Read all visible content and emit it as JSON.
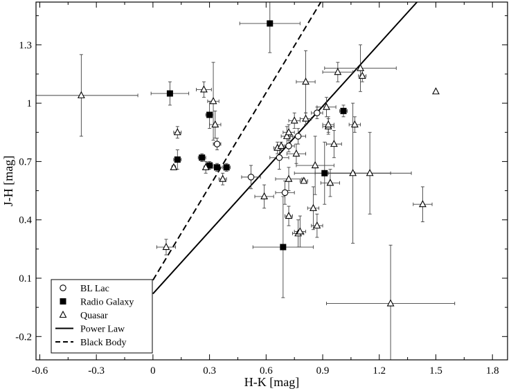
{
  "chart_data": {
    "type": "scatter",
    "xlabel": "H-K [mag]",
    "ylabel": "J-H [mag]",
    "xlim": [
      -0.62,
      1.88
    ],
    "ylim": [
      -0.32,
      1.52
    ],
    "xticks": [
      -0.6,
      -0.3,
      0,
      0.3,
      0.6,
      0.9,
      1.2,
      1.5,
      1.8
    ],
    "xtick_labels": [
      "-0.6",
      "-0.3",
      "0",
      "0.3",
      "0.6",
      "0.9",
      "1.2",
      "1.5",
      "1.8"
    ],
    "yticks": [
      -0.2,
      0.1,
      0.4,
      0.7,
      1.0,
      1.3
    ],
    "ytick_labels": [
      "-0.2",
      "0.1",
      "0.4",
      "0.7",
      "1",
      "1.3"
    ],
    "grid": false,
    "legend_position": "bottom-left",
    "series": [
      {
        "name": "BL Lac",
        "marker": "open-circle",
        "points": [
          {
            "x": 0.34,
            "y": 0.79,
            "xerr": 0.02,
            "yerr": 0.03
          },
          {
            "x": 0.52,
            "y": 0.62,
            "xerr": 0.05,
            "yerr": 0.06
          },
          {
            "x": 0.67,
            "y": 0.72,
            "xerr": 0.05,
            "yerr": 0.06
          },
          {
            "x": 0.7,
            "y": 0.54,
            "xerr": 0.05,
            "yerr": 0.06
          },
          {
            "x": 0.72,
            "y": 0.78,
            "xerr": 0.03,
            "yerr": 0.03
          },
          {
            "x": 0.77,
            "y": 0.83,
            "xerr": 0.04,
            "yerr": 0.04
          },
          {
            "x": 0.87,
            "y": 0.95,
            "xerr": 0.03,
            "yerr": 0.03
          }
        ]
      },
      {
        "name": "Radio Galaxy",
        "marker": "filled-square",
        "points": [
          {
            "x": 0.09,
            "y": 1.05,
            "xerr": 0.1,
            "yerr": 0.06
          },
          {
            "x": 0.13,
            "y": 0.71,
            "xerr": 0.02,
            "yerr": 0.05
          },
          {
            "x": 0.26,
            "y": 0.72,
            "xerr": 0.02,
            "yerr": 0.02
          },
          {
            "x": 0.3,
            "y": 0.94,
            "xerr": 0.02,
            "yerr": 0.07
          },
          {
            "x": 0.3,
            "y": 0.68,
            "xerr": 0.02,
            "yerr": 0.02
          },
          {
            "x": 0.34,
            "y": 0.67,
            "xerr": 0.02,
            "yerr": 0.02
          },
          {
            "x": 0.39,
            "y": 0.67,
            "xerr": 0.02,
            "yerr": 0.02
          },
          {
            "x": 0.62,
            "y": 1.41,
            "xerr": 0.16,
            "yerr": 0.15
          },
          {
            "x": 0.69,
            "y": 0.26,
            "xerr": 0.16,
            "yerr": 0.26
          },
          {
            "x": 0.91,
            "y": 0.64,
            "xerr": 0.16,
            "yerr": 0.16
          },
          {
            "x": 1.01,
            "y": 0.96,
            "xerr": 0.02,
            "yerr": 0.03
          }
        ]
      },
      {
        "name": "Quasar",
        "marker": "open-triangle",
        "points": [
          {
            "x": -0.38,
            "y": 1.04,
            "xerr": 0.3,
            "yerr": 0.21
          },
          {
            "x": 0.07,
            "y": 0.26,
            "xerr": 0.05,
            "yerr": 0.04
          },
          {
            "x": 0.11,
            "y": 0.67,
            "xerr": 0.01,
            "yerr": 0.01
          },
          {
            "x": 0.13,
            "y": 0.85,
            "xerr": 0.02,
            "yerr": 0.03
          },
          {
            "x": 0.27,
            "y": 1.07,
            "xerr": 0.04,
            "yerr": 0.04
          },
          {
            "x": 0.28,
            "y": 0.67,
            "xerr": 0.01,
            "yerr": 0.03
          },
          {
            "x": 0.32,
            "y": 1.01,
            "xerr": 0.03,
            "yerr": 0.2
          },
          {
            "x": 0.33,
            "y": 0.89,
            "xerr": 0.03,
            "yerr": 0.07
          },
          {
            "x": 0.37,
            "y": 0.61,
            "xerr": 0.02,
            "yerr": 0.03
          },
          {
            "x": 0.59,
            "y": 0.52,
            "xerr": 0.05,
            "yerr": 0.06
          },
          {
            "x": 0.66,
            "y": 0.77,
            "xerr": 0.02,
            "yerr": 0.03
          },
          {
            "x": 0.68,
            "y": 0.78,
            "xerr": 0.02,
            "yerr": 0.02
          },
          {
            "x": 0.72,
            "y": 0.42,
            "xerr": 0.02,
            "yerr": 0.05
          },
          {
            "x": 0.72,
            "y": 0.61,
            "xerr": 0.07,
            "yerr": 0.06
          },
          {
            "x": 0.71,
            "y": 0.83,
            "xerr": 0.03,
            "yerr": 0.05
          },
          {
            "x": 0.72,
            "y": 0.85,
            "xerr": 0.03,
            "yerr": 0.04
          },
          {
            "x": 0.75,
            "y": 0.91,
            "xerr": 0.03,
            "yerr": 0.04
          },
          {
            "x": 0.76,
            "y": 0.74,
            "xerr": 0.05,
            "yerr": 0.05
          },
          {
            "x": 0.77,
            "y": 0.33,
            "xerr": 0.03,
            "yerr": 0.07
          },
          {
            "x": 0.78,
            "y": 0.34,
            "xerr": 0.03,
            "yerr": 0.08
          },
          {
            "x": 0.81,
            "y": 1.11,
            "xerr": 0.05,
            "yerr": 0.16
          },
          {
            "x": 0.81,
            "y": 0.92,
            "xerr": 0.03,
            "yerr": 0.03
          },
          {
            "x": 0.8,
            "y": 0.6,
            "xerr": 0.02,
            "yerr": 0.01
          },
          {
            "x": 0.85,
            "y": 0.46,
            "xerr": 0.03,
            "yerr": 0.11
          },
          {
            "x": 0.86,
            "y": 0.68,
            "xerr": 0.1,
            "yerr": 0.15
          },
          {
            "x": 0.87,
            "y": 0.37,
            "xerr": 0.03,
            "yerr": 0.06
          },
          {
            "x": 0.92,
            "y": 0.98,
            "xerr": 0.05,
            "yerr": 0.05
          },
          {
            "x": 0.93,
            "y": 0.88,
            "xerr": 0.03,
            "yerr": 0.04
          },
          {
            "x": 0.93,
            "y": 0.89,
            "xerr": 0.03,
            "yerr": 0.04
          },
          {
            "x": 0.94,
            "y": 0.59,
            "xerr": 0.05,
            "yerr": 0.07
          },
          {
            "x": 0.96,
            "y": 0.79,
            "xerr": 0.04,
            "yerr": 0.07
          },
          {
            "x": 0.98,
            "y": 1.16,
            "xerr": 0.08,
            "yerr": 0.05
          },
          {
            "x": 1.06,
            "y": 0.64,
            "xerr": 0.2,
            "yerr": 0.36
          },
          {
            "x": 1.07,
            "y": 0.89,
            "xerr": 0.03,
            "yerr": 0.04
          },
          {
            "x": 1.1,
            "y": 1.18,
            "xerr": 0.19,
            "yerr": 0.12
          },
          {
            "x": 1.11,
            "y": 1.14,
            "xerr": 0.02,
            "yerr": 0.03
          },
          {
            "x": 1.15,
            "y": 0.64,
            "xerr": 0.22,
            "yerr": 0.21
          },
          {
            "x": 1.26,
            "y": -0.03,
            "xerr": 0.34,
            "yerr": 0.3
          },
          {
            "x": 1.43,
            "y": 0.48,
            "xerr": 0.05,
            "yerr": 0.09
          },
          {
            "x": 1.5,
            "y": 1.06,
            "xerr": 0.0,
            "yerr": 0.0
          }
        ]
      },
      {
        "name": "Power Law",
        "style": "solid-line",
        "points": [
          {
            "x": 0.0,
            "y": 0.02
          },
          {
            "x": 1.4,
            "y": 1.52
          }
        ]
      },
      {
        "name": "Black Body",
        "style": "dashed-line",
        "points": [
          {
            "x": 0.0,
            "y": 0.09
          },
          {
            "x": 0.89,
            "y": 1.52
          }
        ]
      }
    ]
  },
  "colors": {
    "axis": "#000000",
    "background": "#ffffff",
    "error_bars": "#404040"
  }
}
